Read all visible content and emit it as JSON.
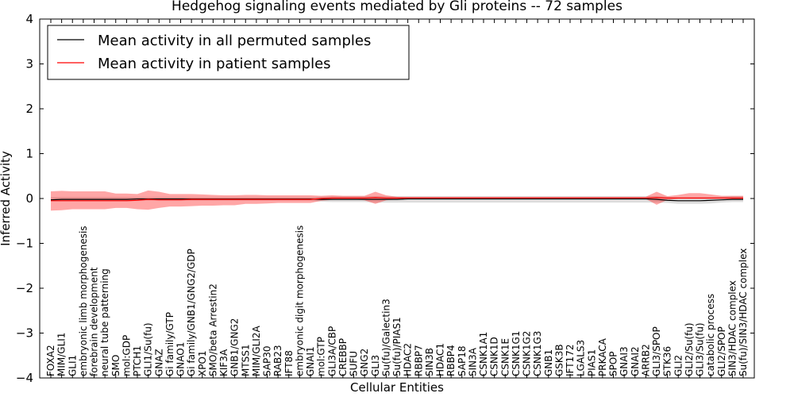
{
  "chart_data": {
    "type": "line",
    "title": "Hedgehog signaling events mediated by Gli proteins -- 72 samples",
    "xlabel": "Cellular Entities",
    "ylabel": "Inferred Activity",
    "ylim": [
      -4,
      4
    ],
    "yticks": [
      -4,
      -3,
      -2,
      -1,
      0,
      1,
      2,
      3,
      4
    ],
    "ytick_labels": [
      "−4",
      "−3",
      "−2",
      "−1",
      "0",
      "1",
      "2",
      "3",
      "4"
    ],
    "legend_position": "top-left",
    "legend": [
      {
        "label": "Mean activity in all permuted samples",
        "color": "#000000"
      },
      {
        "label": "Mean activity in patient samples",
        "color": "#ff0000"
      }
    ],
    "categories": [
      "FOXA2",
      "MIM/GLI1",
      "GLI1",
      "embryonic limb morphogenesis",
      "forebrain development",
      "neural tube patterning",
      "SMO",
      "mol:GDP",
      "PTCH1",
      "GLI1/Su(fu)",
      "GNAZ",
      "Gi family/GTP",
      "GNAO1",
      "Gi family/GNB1/GNG2/GDP",
      "XPO1",
      "SMO/beta Arrestin2",
      "KIF3A",
      "GNB1/GNG2",
      "MTSS1",
      "MIM/GLI2A",
      "SAP30",
      "RAB23",
      "IFT88",
      "embryonic digit morphogenesis",
      "GNAI1",
      "mol:GTP",
      "GLI3A/CBP",
      "CREBBP",
      "SUFU",
      "GNG2",
      "GLI3",
      "Su(fu)/Galectin3",
      "Su(fu)/PIAS1",
      "HDAC2",
      "RBBP7",
      "SIN3B",
      "HDAC1",
      "RBBP4",
      "SAP18",
      "SIN3A",
      "CSNK1A1",
      "CSNK1D",
      "CSNK1E",
      "CSNK1G1",
      "CSNK1G2",
      "CSNK1G3",
      "GNB1",
      "GSK3B",
      "IFT172",
      "LGALS3",
      "PIAS1",
      "PRKACA",
      "SPOP",
      "GNAI3",
      "GNAI2",
      "ARRB2",
      "GLI3/SPOP",
      "STK36",
      "GLI2",
      "GLI2/Su(fu)",
      "GLI3/Su(fu)",
      "catabolic process",
      "GLI2/SPOP",
      "SIN3/HDAC complex",
      "Su(fu)/SIN3/HDAC complex"
    ],
    "series": [
      {
        "name": "Mean activity in all permuted samples",
        "color": "#000000",
        "values": [
          -0.03,
          -0.02,
          -0.02,
          -0.02,
          -0.02,
          -0.02,
          -0.02,
          -0.02,
          -0.01,
          -0.01,
          -0.01,
          -0.01,
          -0.01,
          -0.01,
          -0.01,
          -0.01,
          -0.01,
          -0.01,
          -0.01,
          -0.01,
          -0.01,
          -0.01,
          -0.01,
          -0.01,
          -0.01,
          -0.02,
          -0.02,
          -0.02,
          -0.02,
          -0.02,
          -0.02,
          -0.02,
          -0.02,
          -0.01,
          -0.01,
          -0.01,
          -0.01,
          -0.01,
          -0.01,
          -0.01,
          -0.01,
          -0.01,
          -0.01,
          -0.01,
          -0.01,
          -0.01,
          -0.01,
          -0.01,
          -0.01,
          -0.01,
          -0.01,
          -0.01,
          -0.01,
          -0.01,
          -0.01,
          -0.01,
          -0.02,
          -0.04,
          -0.05,
          -0.05,
          -0.05,
          -0.04,
          -0.03,
          -0.02,
          -0.02
        ],
        "band_low": [
          -0.06,
          -0.06,
          -0.06,
          -0.06,
          -0.06,
          -0.06,
          -0.06,
          -0.06,
          -0.05,
          -0.05,
          -0.05,
          -0.05,
          -0.05,
          -0.05,
          -0.05,
          -0.05,
          -0.05,
          -0.05,
          -0.05,
          -0.05,
          -0.05,
          -0.05,
          -0.05,
          -0.05,
          -0.05,
          -0.07,
          -0.08,
          -0.08,
          -0.08,
          -0.08,
          -0.09,
          -0.09,
          -0.09,
          -0.09,
          -0.09,
          -0.09,
          -0.09,
          -0.09,
          -0.09,
          -0.09,
          -0.09,
          -0.09,
          -0.09,
          -0.09,
          -0.09,
          -0.09,
          -0.09,
          -0.09,
          -0.09,
          -0.09,
          -0.09,
          -0.09,
          -0.09,
          -0.09,
          -0.09,
          -0.09,
          -0.09,
          -0.1,
          -0.12,
          -0.12,
          -0.12,
          -0.11,
          -0.09,
          -0.08,
          -0.08
        ],
        "band_high": [
          0.03,
          0.03,
          0.03,
          0.03,
          0.03,
          0.03,
          0.03,
          0.03,
          0.03,
          0.03,
          0.03,
          0.03,
          0.03,
          0.03,
          0.03,
          0.03,
          0.03,
          0.03,
          0.03,
          0.03,
          0.03,
          0.03,
          0.03,
          0.03,
          0.03,
          0.04,
          0.05,
          0.05,
          0.05,
          0.05,
          0.05,
          0.05,
          0.05,
          0.05,
          0.05,
          0.05,
          0.05,
          0.05,
          0.05,
          0.05,
          0.05,
          0.05,
          0.05,
          0.05,
          0.05,
          0.05,
          0.05,
          0.05,
          0.05,
          0.05,
          0.05,
          0.05,
          0.05,
          0.05,
          0.05,
          0.05,
          0.05,
          0.04,
          0.03,
          0.03,
          0.03,
          0.03,
          0.04,
          0.05,
          0.05
        ]
      },
      {
        "name": "Mean activity in patient samples",
        "color": "#ff0000",
        "values": [
          -0.05,
          -0.05,
          -0.05,
          -0.05,
          -0.05,
          -0.05,
          -0.05,
          -0.05,
          -0.04,
          -0.02,
          -0.03,
          -0.03,
          -0.03,
          -0.02,
          -0.02,
          -0.02,
          -0.02,
          -0.02,
          -0.02,
          -0.02,
          -0.02,
          -0.02,
          -0.02,
          -0.02,
          -0.02,
          0.0,
          0.01,
          0.01,
          0.01,
          0.01,
          0.02,
          0.01,
          0.01,
          0.01,
          0.01,
          0.01,
          0.01,
          0.01,
          0.01,
          0.01,
          0.01,
          0.01,
          0.01,
          0.01,
          0.01,
          0.01,
          0.01,
          0.01,
          0.01,
          0.01,
          0.01,
          0.01,
          0.01,
          0.01,
          0.01,
          0.01,
          0.02,
          0.01,
          0.01,
          0.01,
          0.01,
          0.01,
          0.01,
          0.01,
          0.01
        ],
        "band_low": [
          -0.27,
          -0.26,
          -0.24,
          -0.24,
          -0.24,
          -0.24,
          -0.21,
          -0.21,
          -0.24,
          -0.25,
          -0.21,
          -0.18,
          -0.18,
          -0.17,
          -0.16,
          -0.16,
          -0.15,
          -0.15,
          -0.12,
          -0.12,
          -0.11,
          -0.1,
          -0.1,
          -0.1,
          -0.1,
          -0.05,
          -0.03,
          -0.02,
          -0.02,
          -0.04,
          -0.12,
          -0.04,
          -0.02,
          -0.01,
          -0.01,
          -0.01,
          -0.01,
          -0.01,
          -0.01,
          -0.01,
          -0.01,
          -0.01,
          -0.01,
          -0.01,
          -0.01,
          -0.01,
          -0.01,
          -0.01,
          -0.01,
          -0.01,
          -0.01,
          -0.01,
          -0.01,
          -0.01,
          -0.01,
          -0.01,
          -0.14,
          -0.03,
          -0.01,
          -0.01,
          -0.01,
          -0.01,
          -0.01,
          -0.01,
          -0.01
        ],
        "band_high": [
          0.16,
          0.17,
          0.16,
          0.16,
          0.16,
          0.16,
          0.11,
          0.11,
          0.1,
          0.18,
          0.15,
          0.1,
          0.1,
          0.1,
          0.09,
          0.08,
          0.07,
          0.07,
          0.08,
          0.08,
          0.07,
          0.07,
          0.07,
          0.07,
          0.07,
          0.06,
          0.07,
          0.06,
          0.06,
          0.06,
          0.15,
          0.07,
          0.04,
          0.04,
          0.04,
          0.04,
          0.04,
          0.04,
          0.04,
          0.04,
          0.04,
          0.04,
          0.04,
          0.04,
          0.04,
          0.04,
          0.04,
          0.04,
          0.04,
          0.04,
          0.04,
          0.04,
          0.04,
          0.04,
          0.04,
          0.04,
          0.15,
          0.05,
          0.08,
          0.12,
          0.12,
          0.09,
          0.06,
          0.06,
          0.06
        ]
      }
    ]
  }
}
